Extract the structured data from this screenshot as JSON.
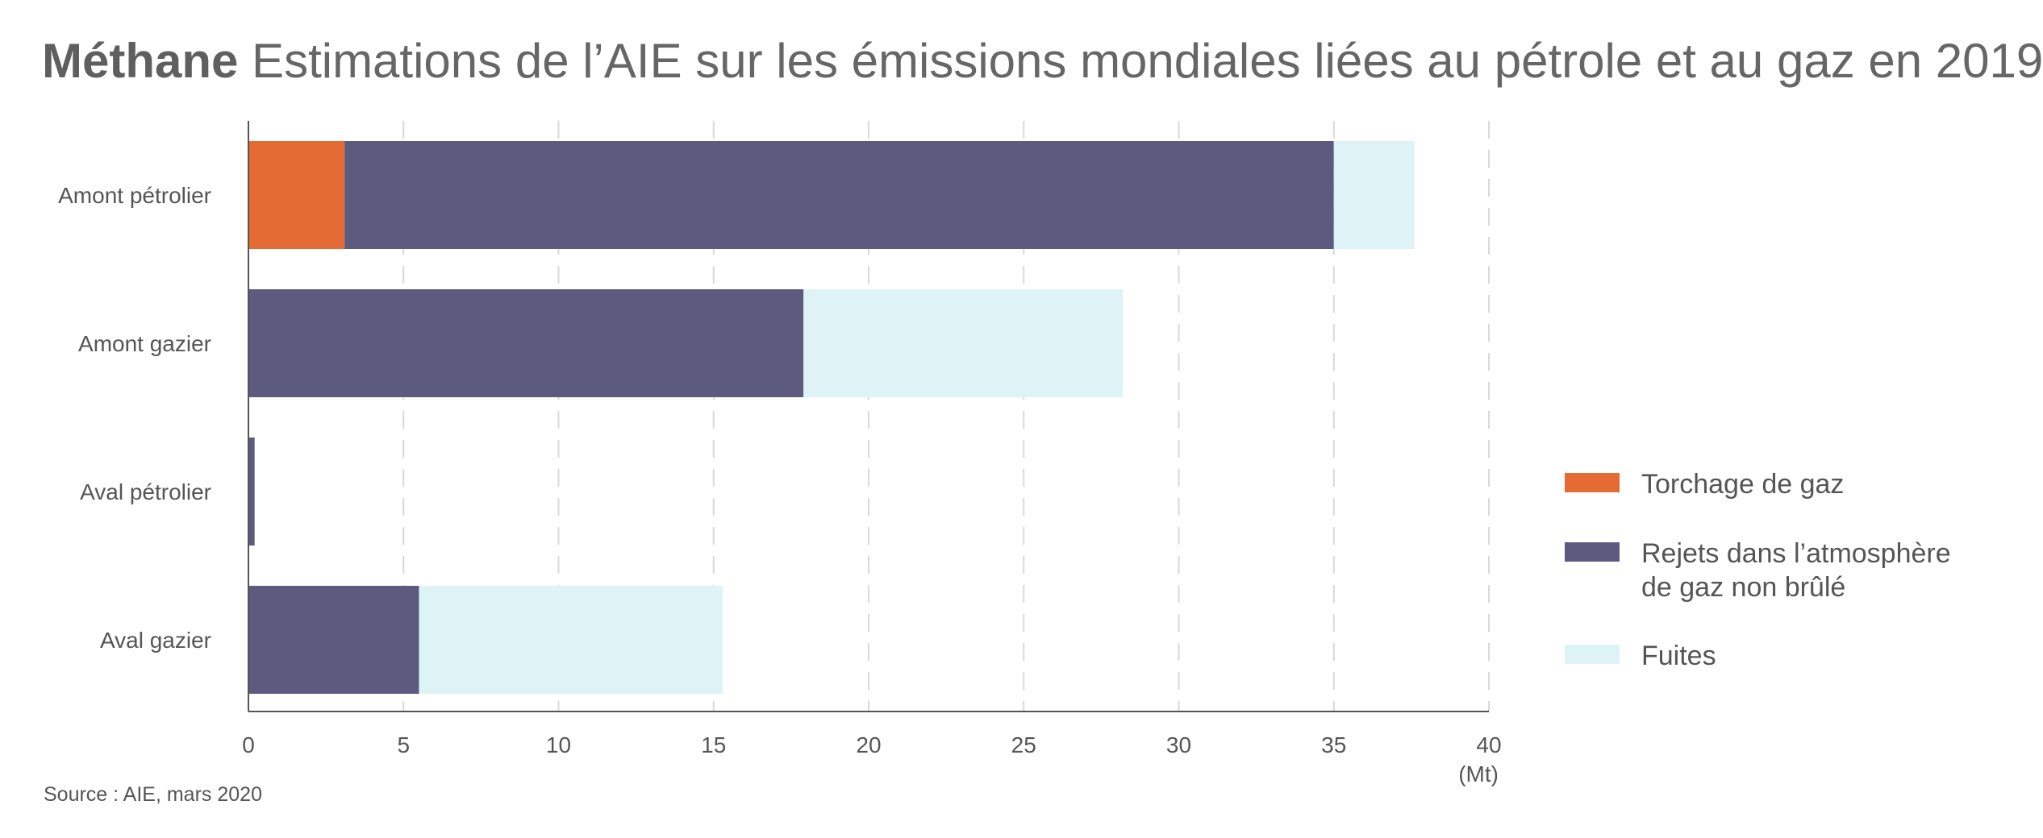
{
  "title": {
    "bold": "Méthane",
    "rest": " Estimations de l’AIE sur les émissions mondiales liées au pétrole et au gaz en 2019"
  },
  "source": "Source : AIE, mars 2020",
  "chart_data": {
    "type": "bar",
    "orientation": "horizontal",
    "stacked": true,
    "categories": [
      "Amont pétrolier",
      "Amont gazier",
      "Aval pétrolier",
      "Aval gazier"
    ],
    "series": [
      {
        "name": "Torchage de gaz",
        "color": "#e46c34",
        "values": [
          3.1,
          0,
          0,
          0
        ]
      },
      {
        "name": "Rejets dans l’atmosphère de gaz non brûlé",
        "legend_lines": [
          "Rejets dans l’atmosphère",
          "de gaz non brûlé"
        ],
        "color": "#5c5a7f",
        "values": [
          31.9,
          17.9,
          0.2,
          5.5
        ]
      },
      {
        "name": "Fuites",
        "color": "#def3f6",
        "values": [
          2.6,
          10.3,
          0,
          9.8
        ]
      }
    ],
    "xlim": [
      0,
      40
    ],
    "xticks": [
      "0",
      "5",
      "10",
      "15",
      "20",
      "25",
      "30",
      "35",
      "40"
    ],
    "xunit": "(Mt)",
    "grid": "vertical-dashed",
    "legend_position": "right"
  }
}
